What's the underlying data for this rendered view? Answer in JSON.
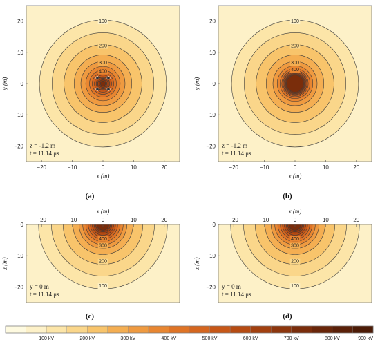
{
  "chart_data": {
    "type": "contour",
    "colorbar": {
      "levels": [
        0,
        50,
        100,
        150,
        200,
        250,
        300,
        350,
        400,
        450,
        500,
        550,
        600,
        650,
        700,
        750,
        800,
        850,
        900
      ],
      "labels": [
        "100 kV",
        "200 kV",
        "300 kV",
        "400 kV",
        "500 kV",
        "600 kV",
        "700 kV",
        "800 kV",
        "900 kV"
      ],
      "label_values": [
        100,
        200,
        300,
        400,
        500,
        600,
        700,
        800,
        900
      ],
      "colors": [
        "#fefae0",
        "#fdf1c8",
        "#fce5a8",
        "#fad68a",
        "#f8c46b",
        "#f4ae52",
        "#ef9a40",
        "#e88631",
        "#df7426",
        "#d5661f",
        "#c75717",
        "#b64b12",
        "#a2400f",
        "#8d360d",
        "#7a2d0b",
        "#692609",
        "#5a2008",
        "#4c1b06"
      ]
    },
    "contour_values": [
      100,
      150,
      200,
      250,
      300,
      350,
      400,
      450,
      500,
      550,
      600,
      650,
      700
    ],
    "panels": [
      {
        "id": "a",
        "caption": "(a)",
        "view": "plan",
        "xlabel": "x (m)",
        "ylabel": "y (m)",
        "xlim": [
          -25,
          25
        ],
        "ylim": [
          -25,
          25
        ],
        "xticks": [
          "−20",
          "−10",
          "0",
          "10",
          "20"
        ],
        "yticks": [
          "20",
          "10",
          "0",
          "−10",
          "−20"
        ],
        "xtick_values": [
          -20,
          -10,
          0,
          10,
          20
        ],
        "ytick_values": [
          20,
          10,
          0,
          -10,
          -20
        ],
        "contour_labels": [
          "100",
          "200",
          "300",
          "400"
        ],
        "radii": {
          "100": 20.7,
          "150": 16.6,
          "200": 12.7,
          "250": 9.4,
          "300": 7.2,
          "350": 5.6,
          "400": 4.4,
          "450": 3.5,
          "500": 2.8,
          "550": 2.2,
          "600": 1.7,
          "650": 1.25,
          "700": 0.85
        },
        "electrodes": [
          [
            -1.8,
            1.8
          ],
          [
            1.8,
            1.8
          ],
          [
            -1.8,
            -1.8
          ],
          [
            1.8,
            -1.8
          ]
        ],
        "note_lines": [
          "z = -1.2 m",
          "t = 11.14 μs"
        ]
      },
      {
        "id": "b",
        "caption": "(b)",
        "view": "plan",
        "xlabel": "x (m)",
        "ylabel": "y (m)",
        "xlim": [
          -25,
          25
        ],
        "ylim": [
          -25,
          25
        ],
        "xticks": [
          "−20",
          "−10",
          "0",
          "10",
          "20"
        ],
        "yticks": [
          "20",
          "10",
          "0",
          "−10",
          "−20"
        ],
        "xtick_values": [
          -20,
          -10,
          0,
          10,
          20
        ],
        "ytick_values": [
          20,
          10,
          0,
          -10,
          -20
        ],
        "contour_labels": [
          "100",
          "200",
          "300",
          "400"
        ],
        "radii": {
          "100": 20.7,
          "150": 16.6,
          "200": 12.7,
          "250": 9.4,
          "300": 7.2,
          "350": 5.8,
          "400": 4.9,
          "450": 4.3,
          "500": 3.9,
          "550": 3.6,
          "600": 3.3,
          "650": 3.05,
          "700": 2.8
        },
        "electrodes": [],
        "note_lines": [
          "z = -1.2 m",
          "t = 11.14 μs"
        ]
      },
      {
        "id": "c",
        "caption": "(c)",
        "view": "section",
        "xlabel": "x (m)",
        "ylabel": "z (m)",
        "xlim": [
          -25,
          25
        ],
        "ylim": [
          -25,
          0
        ],
        "xticks": [
          "−20",
          "−10",
          "0",
          "10",
          "20"
        ],
        "yticks": [
          "0",
          "−10",
          "−20"
        ],
        "xtick_values": [
          -20,
          -10,
          0,
          10,
          20
        ],
        "ytick_values": [
          0,
          -10,
          -20
        ],
        "contour_labels": [
          "100",
          "200",
          "300",
          "400"
        ],
        "radii": {
          "100": 21,
          "150": 16.8,
          "200": 13,
          "250": 9.8,
          "300": 7.8,
          "350": 6.6,
          "400": 5.6,
          "450": 4.8,
          "500": 4.1,
          "550": 3.5,
          "600": 2.9,
          "650": 2.4,
          "700": 1.9
        },
        "electrodes": [],
        "note_lines": [
          "y = 0 m",
          "t = 11.14 μs"
        ]
      },
      {
        "id": "d",
        "caption": "(d)",
        "view": "section",
        "xlabel": "x (m)",
        "ylabel": "z (m)",
        "xlim": [
          -25,
          25
        ],
        "ylim": [
          -25,
          0
        ],
        "xticks": [
          "−20",
          "−10",
          "0",
          "10",
          "20"
        ],
        "yticks": [
          "0",
          "−10",
          "−20"
        ],
        "xtick_values": [
          -20,
          -10,
          0,
          10,
          20
        ],
        "ytick_values": [
          0,
          -10,
          -20
        ],
        "contour_labels": [
          "100",
          "200",
          "300",
          "400"
        ],
        "radii": {
          "100": 21,
          "150": 16.8,
          "200": 13,
          "250": 9.8,
          "300": 7.8,
          "350": 6.6,
          "400": 5.6,
          "450": 4.8,
          "500": 4.1,
          "550": 3.5,
          "600": 2.9,
          "650": 2.4,
          "700": 1.9
        },
        "electrodes": [],
        "note_lines": [
          "y = 0 m",
          "t = 11.14 μs"
        ]
      }
    ]
  }
}
